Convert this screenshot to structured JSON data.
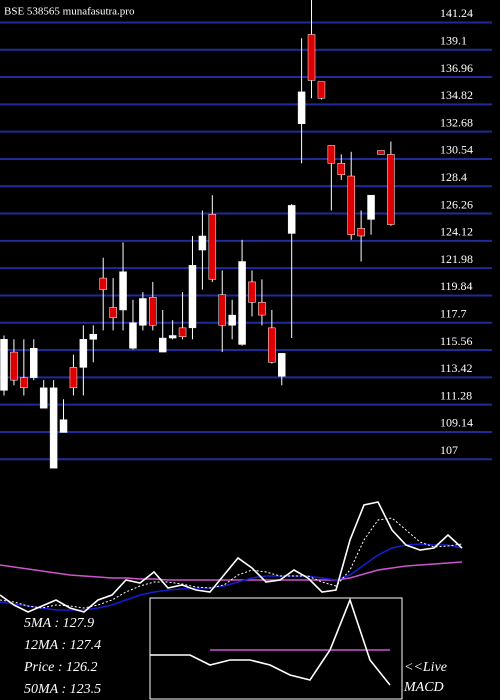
{
  "header": "BSE 538565 munafasutra.pro",
  "legend_texts": [
    "5MA : 127.9",
    "12MA : 127.4",
    "Price  : 126.2",
    "50MA : 123.5"
  ],
  "chart_data": [
    {
      "type": "candlestick",
      "ylim": [
        106.0,
        143.0
      ],
      "grid": true,
      "grid_color": "#1f2a9c",
      "up_color": "#ffffff",
      "down_color": "#dd0000",
      "yticks": [
        141.24,
        139.1,
        136.96,
        134.82,
        132.68,
        130.54,
        128.4,
        126.26,
        124.12,
        121.98,
        119.84,
        117.7,
        115.56,
        113.42,
        111.28,
        109.14,
        107
      ],
      "open": [
        112.4,
        115.4,
        113.4,
        113.4,
        111.0,
        106.3,
        109.1,
        114.2,
        114.2,
        116.4,
        121.2,
        118.9,
        118.7,
        115.7,
        117.5,
        119.7,
        115.4,
        116.5,
        117.3,
        117.3,
        123.4,
        126.2,
        119.9,
        117.5,
        116.0,
        120.9,
        119.3,
        117.3,
        113.5,
        124.7,
        133.3,
        140.3,
        136.6,
        131.6,
        130.2,
        129.2,
        125.1,
        125.8,
        131.2,
        130.9
      ],
      "high": [
        116.7,
        116.4,
        116.4,
        116.4,
        113.2,
        113.2,
        111.7,
        115.2,
        117.5,
        117.5,
        122.8,
        121.2,
        124.0,
        119.5,
        120.1,
        120.9,
        118.7,
        117.9,
        120.1,
        124.5,
        126.5,
        127.7,
        121.8,
        119.5,
        124.2,
        121.8,
        121.1,
        118.7,
        115.3,
        127.0,
        140.0,
        143.0,
        136.6,
        131.6,
        130.9,
        131.1,
        126.5,
        127.7,
        131.2,
        131.9
      ],
      "low": [
        112.0,
        112.8,
        112.0,
        113.2,
        111.0,
        106.3,
        109.1,
        112.0,
        112.0,
        114.6,
        117.1,
        117.1,
        117.1,
        115.6,
        117.1,
        117.1,
        115.4,
        116.4,
        116.4,
        116.4,
        120.3,
        120.9,
        115.4,
        116.4,
        115.9,
        118.2,
        117.5,
        114.5,
        112.8,
        116.5,
        130.2,
        135.3,
        135.2,
        126.5,
        128.9,
        124.2,
        122.5,
        124.6,
        130.9,
        125.3
      ],
      "close": [
        116.4,
        113.2,
        112.6,
        115.7,
        112.6,
        112.6,
        110.1,
        112.6,
        116.4,
        116.8,
        120.3,
        118.1,
        121.7,
        117.7,
        119.6,
        117.5,
        116.5,
        116.7,
        116.6,
        122.2,
        124.5,
        121.1,
        117.5,
        118.3,
        122.5,
        119.3,
        118.3,
        114.6,
        115.3,
        126.9,
        135.8,
        136.7,
        135.3,
        130.2,
        129.3,
        124.6,
        124.5,
        127.7,
        130.9,
        125.4
      ]
    },
    {
      "type": "line",
      "ylim": [
        -20,
        130
      ],
      "series": [
        {
          "color": "#cc55cc",
          "style": "solid",
          "values": [
            35,
            33,
            31,
            29,
            27,
            25,
            24,
            23,
            22,
            22,
            21,
            21,
            20,
            20,
            20,
            20,
            20,
            20,
            20,
            20,
            20,
            20,
            20,
            20,
            20,
            22,
            26,
            30,
            32,
            34,
            35,
            36,
            37,
            38
          ]
        },
        {
          "color": "#1a1ad0",
          "style": "solid",
          "values": [
            -2,
            -4,
            -6,
            -8,
            -10,
            -10,
            -10,
            -8,
            -5,
            0,
            5,
            8,
            10,
            11,
            12,
            12,
            14,
            18,
            22,
            24,
            24,
            24,
            24,
            22,
            20,
            25,
            35,
            45,
            52,
            55,
            56,
            55,
            55,
            52
          ]
        },
        {
          "color": "#ffffff",
          "style": "dotted",
          "values": [
            0,
            -2,
            -6,
            -8,
            -5,
            -6,
            -8,
            -5,
            0,
            8,
            14,
            18,
            18,
            16,
            13,
            12,
            15,
            25,
            30,
            28,
            24,
            24,
            24,
            18,
            14,
            30,
            60,
            80,
            82,
            70,
            58,
            53,
            54,
            56
          ]
        },
        {
          "color": "#ffffff",
          "style": "solid",
          "values": [
            5,
            -5,
            -12,
            -6,
            0,
            -8,
            -12,
            0,
            5,
            20,
            17,
            28,
            12,
            15,
            10,
            8,
            25,
            42,
            32,
            18,
            20,
            30,
            22,
            8,
            10,
            60,
            95,
            98,
            70,
            55,
            50,
            52,
            65,
            52
          ]
        }
      ]
    },
    {
      "type": "macd",
      "title_lines": [
        "<<Live",
        "MACD"
      ],
      "ylim": [
        -10,
        10
      ],
      "series": [
        {
          "color": "#cc55cc",
          "style": "solid",
          "values": [
            null,
            null,
            null,
            0,
            0,
            0,
            0,
            0,
            0,
            0,
            0,
            0,
            0
          ]
        },
        {
          "color": "#ffffff",
          "style": "solid",
          "values": [
            -1,
            -1,
            -1,
            -3,
            -2,
            -2,
            -3,
            -5,
            -6,
            0,
            10,
            -2,
            -7
          ]
        }
      ]
    }
  ]
}
